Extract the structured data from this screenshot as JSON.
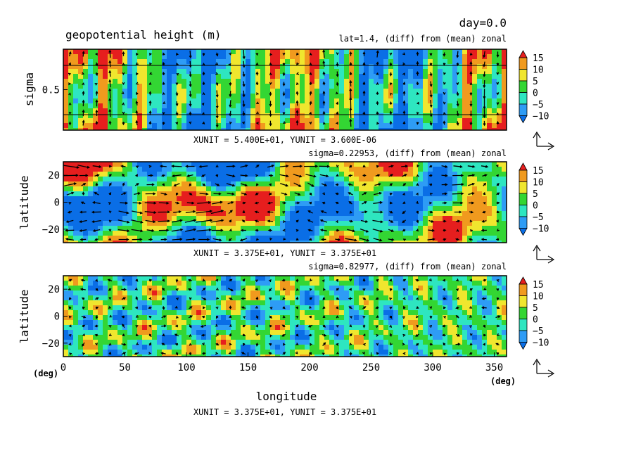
{
  "figure": {
    "title": "geopotential height (m)",
    "time_label": "day=0.0",
    "xlabel": "longitude",
    "x_unit": "(deg)",
    "y_unit": "(deg)"
  },
  "chart_data": [
    {
      "type": "heatmap",
      "subtitle": "lat=1.4, (diff) from (mean) zonal",
      "xlabel": "",
      "ylabel": "sigma",
      "xlim": [
        0,
        360
      ],
      "ylim": [
        1.0,
        0.0
      ],
      "ytick_labels": [
        "0.5"
      ],
      "yticks": [
        0.5
      ],
      "vector_units": "XUNIT = 5.400E+01, YUNIT = 3.600E-06",
      "colorbar_levels": [
        -10,
        -5,
        0,
        5,
        10,
        15
      ],
      "colorbar_labels": [
        "15",
        "10",
        "5",
        "0",
        "−5",
        "−10"
      ],
      "vectors": true
    },
    {
      "type": "heatmap",
      "subtitle": "sigma=0.22953, (diff) from (mean) zonal",
      "xlabel": "",
      "ylabel": "latitude",
      "xlim": [
        0,
        360
      ],
      "ylim": [
        -30,
        30
      ],
      "ytick_labels": [
        "20",
        "0",
        "−20"
      ],
      "yticks": [
        20,
        0,
        -20
      ],
      "vector_units": "XUNIT = 3.375E+01, YUNIT = 3.375E+01",
      "colorbar_levels": [
        -10,
        -5,
        0,
        5,
        10,
        15
      ],
      "colorbar_labels": [
        "15",
        "10",
        "5",
        "0",
        "−5",
        "−10"
      ],
      "vectors": true
    },
    {
      "type": "heatmap",
      "subtitle": "sigma=0.82977, (diff) from (mean) zonal",
      "xlabel": "longitude",
      "ylabel": "latitude",
      "xlim": [
        0,
        360
      ],
      "ylim": [
        -30,
        30
      ],
      "xticks": [
        0,
        50,
        100,
        150,
        200,
        250,
        300,
        350
      ],
      "xtick_labels": [
        "0",
        "50",
        "100",
        "150",
        "200",
        "250",
        "300",
        "350"
      ],
      "ytick_labels": [
        "20",
        "0",
        "−20"
      ],
      "yticks": [
        20,
        0,
        -20
      ],
      "vector_units": "XUNIT = 3.375E+01, YUNIT = 3.375E+01",
      "colorbar_levels": [
        -10,
        -5,
        0,
        5,
        10,
        15
      ],
      "colorbar_labels": [
        "15",
        "10",
        "5",
        "0",
        "−5",
        "−10"
      ],
      "vectors": true
    }
  ],
  "colors": {
    "lt_neg10": "#0a6ee6",
    "neg10_neg5": "#2e9cf5",
    "neg5_0": "#2ee6c0",
    "zero_5": "#33d633",
    "five_10": "#f0e62e",
    "ten_15": "#f09a1e",
    "gt_15": "#e61e1e",
    "arrow": "#000000"
  }
}
